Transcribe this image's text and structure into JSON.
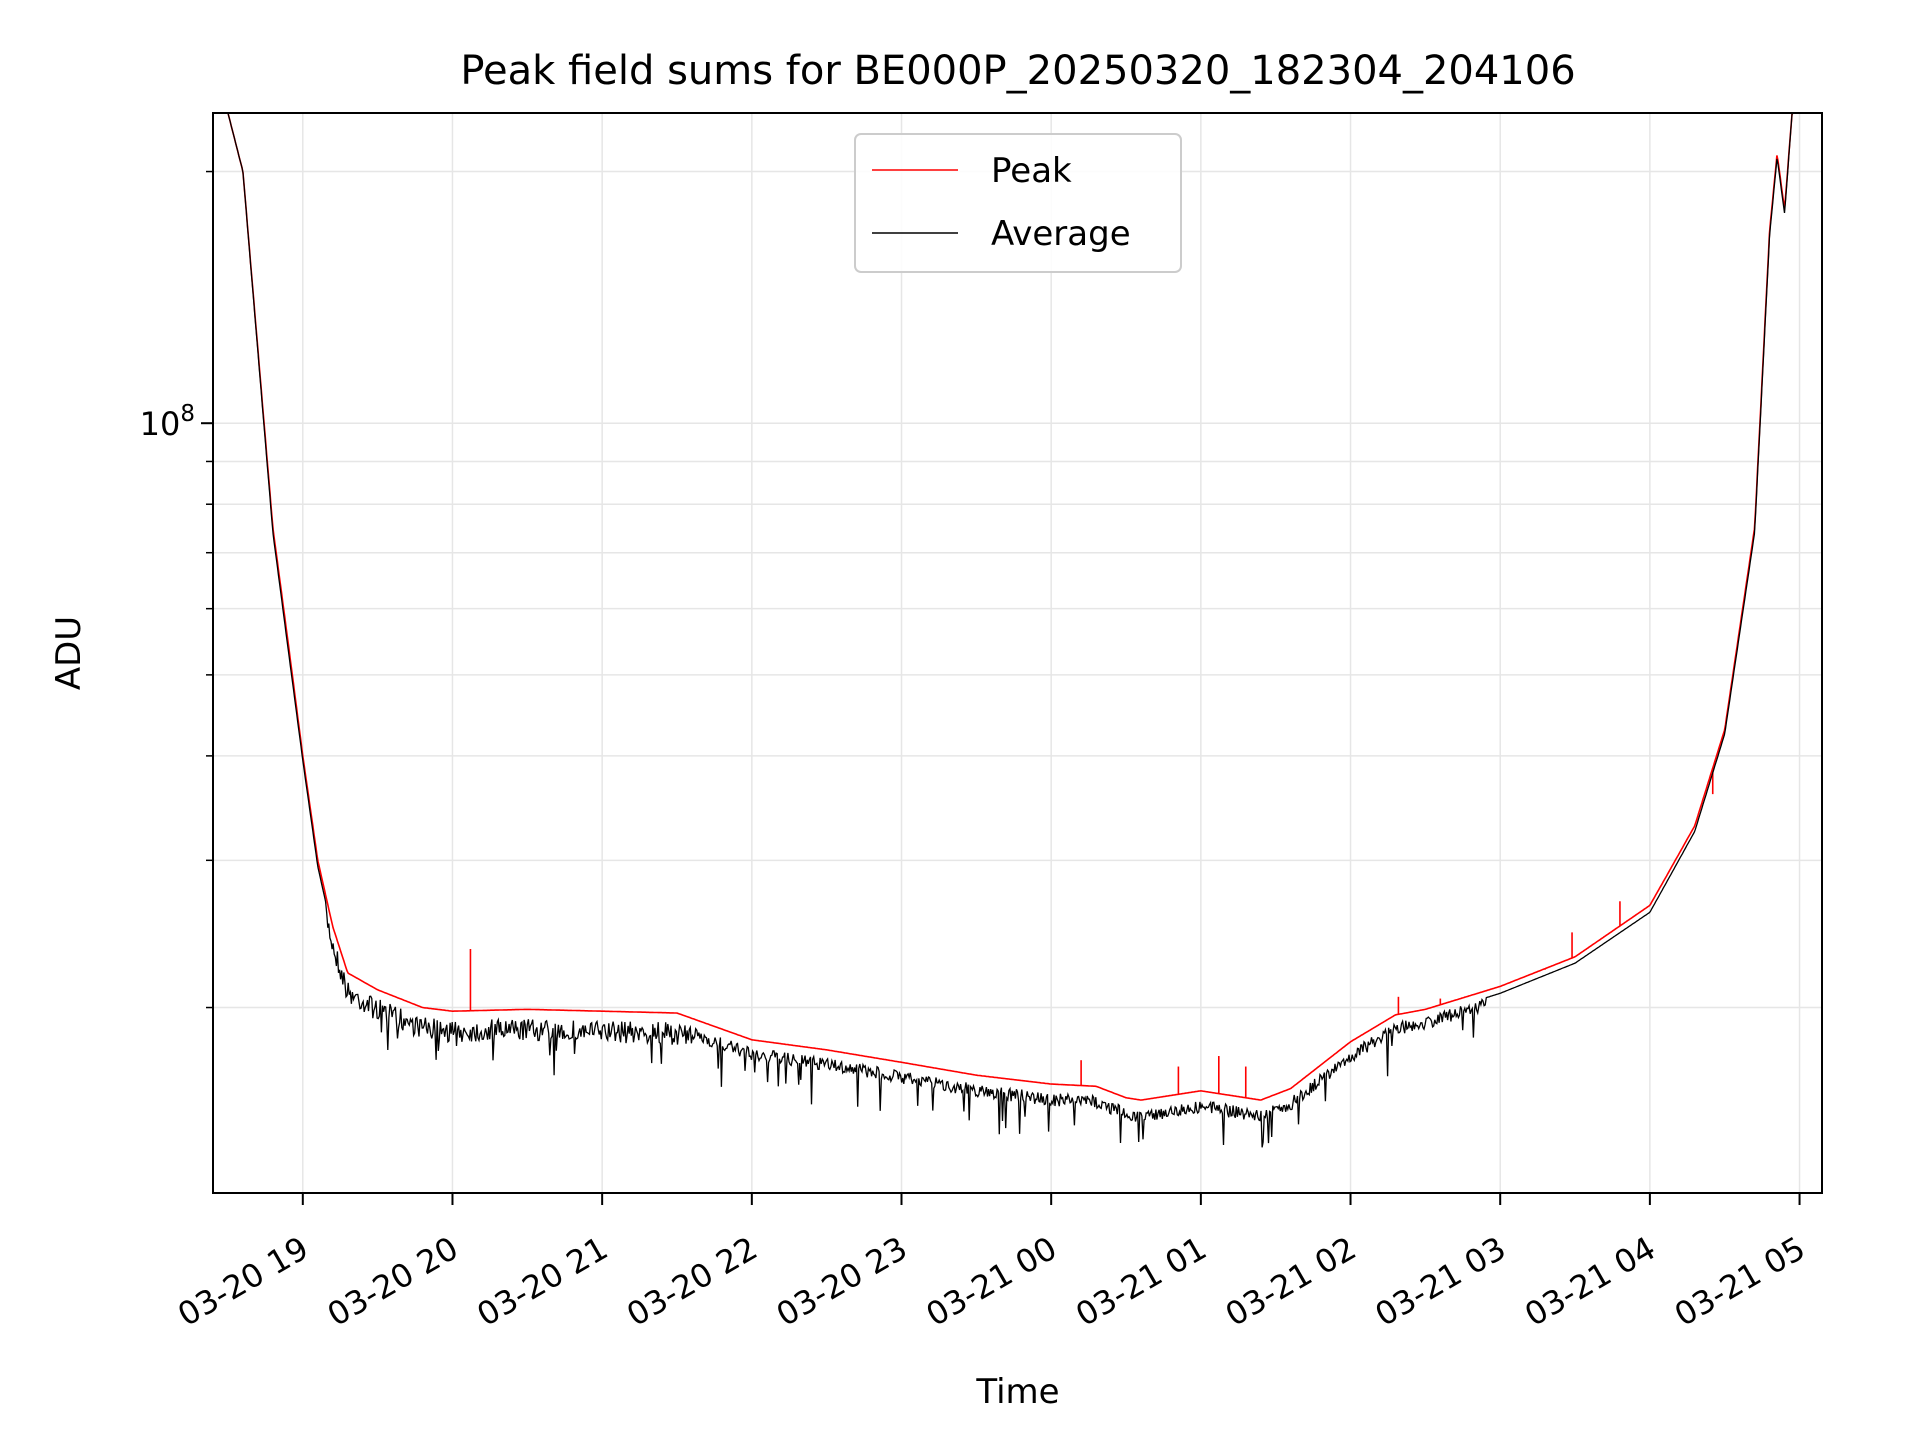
{
  "chart_data": {
    "type": "line",
    "title": "Peak field sums for BE000P_20250320_182304_204106",
    "xlabel": "Time",
    "ylabel": "ADU",
    "yscale": "log",
    "xlim_hours": [
      18.4,
      29.15
    ],
    "ylim": [
      12000000,
      235000000
    ],
    "x_ticks": [
      {
        "hour": 19,
        "label": "03-20 19"
      },
      {
        "hour": 20,
        "label": "03-20 20"
      },
      {
        "hour": 21,
        "label": "03-20 21"
      },
      {
        "hour": 22,
        "label": "03-20 22"
      },
      {
        "hour": 23,
        "label": "03-20 23"
      },
      {
        "hour": 24,
        "label": "03-21 00"
      },
      {
        "hour": 25,
        "label": "03-21 01"
      },
      {
        "hour": 26,
        "label": "03-21 02"
      },
      {
        "hour": 27,
        "label": "03-21 03"
      },
      {
        "hour": 28,
        "label": "03-21 04"
      },
      {
        "hour": 29,
        "label": "03-21 05"
      }
    ],
    "y_major_tick": {
      "value": 100000000,
      "base": "10",
      "exp": "8"
    },
    "y_minor_ticks": [
      20000000,
      30000000,
      40000000,
      50000000,
      60000000,
      70000000,
      80000000,
      90000000,
      200000000
    ],
    "grid": true,
    "legend": {
      "position": "upper-center",
      "entries": [
        "Peak",
        "Average"
      ]
    },
    "series": [
      {
        "name": "Peak",
        "color": "#ff0000",
        "x_hours": [
          18.4,
          18.5,
          18.6,
          18.8,
          18.9,
          19.0,
          19.1,
          19.2,
          19.3,
          19.5,
          19.8,
          20.0,
          20.5,
          21.0,
          21.5,
          22.0,
          22.5,
          23.0,
          23.5,
          24.0,
          24.3,
          24.5,
          24.6,
          25.0,
          25.4,
          25.6,
          26.0,
          26.3,
          26.5,
          27.0,
          27.5,
          28.0,
          28.1,
          28.3,
          28.5,
          28.7,
          28.8,
          28.85,
          28.9,
          28.95,
          29.15
        ],
        "values": [
          235000000,
          235000000,
          200000000,
          75000000,
          55000000,
          40000000,
          30000000,
          25000000,
          22000000,
          21000000,
          20000000,
          19800000,
          19900000,
          19800000,
          19700000,
          18300000,
          17800000,
          17200000,
          16600000,
          16200000,
          16100000,
          15600000,
          15500000,
          15900000,
          15500000,
          16000000,
          18200000,
          19600000,
          19900000,
          21200000,
          23000000,
          26500000,
          28500000,
          33000000,
          43000000,
          75000000,
          170000000,
          210000000,
          180000000,
          235000000,
          235000000
        ]
      },
      {
        "name": "Average",
        "color": "#000000",
        "x_hours": [
          18.4,
          18.5,
          18.6,
          18.8,
          18.9,
          19.0,
          19.1,
          19.2,
          19.3,
          19.5,
          19.8,
          20.0,
          20.5,
          21.0,
          21.5,
          22.0,
          22.5,
          23.0,
          23.5,
          24.0,
          24.3,
          24.5,
          24.6,
          25.0,
          25.4,
          25.6,
          26.0,
          26.3,
          26.5,
          27.0,
          27.5,
          28.0,
          28.1,
          28.3,
          28.5,
          28.7,
          28.8,
          28.85,
          28.9,
          28.95,
          29.15
        ],
        "values": [
          235000000,
          235000000,
          200000000,
          74000000,
          54000000,
          39500000,
          29500000,
          24500000,
          21500000,
          20500000,
          19500000,
          19300000,
          19400000,
          19300000,
          19200000,
          17900000,
          17400000,
          16800000,
          16200000,
          15800000,
          15700000,
          15200000,
          15100000,
          15500000,
          15100000,
          15600000,
          17800000,
          19200000,
          19500000,
          20800000,
          22600000,
          26000000,
          28000000,
          32500000,
          42500000,
          74000000,
          168000000,
          208000000,
          178000000,
          235000000,
          235000000
        ]
      }
    ],
    "peak_spikes": [
      {
        "hour": 20.12,
        "value": 23500000
      },
      {
        "hour": 24.2,
        "value": 17300000
      },
      {
        "hour": 24.85,
        "value": 17000000
      },
      {
        "hour": 25.12,
        "value": 17500000
      },
      {
        "hour": 25.3,
        "value": 17000000
      },
      {
        "hour": 26.32,
        "value": 20600000
      },
      {
        "hour": 26.6,
        "value": 20500000
      },
      {
        "hour": 27.3,
        "value": 22200000
      },
      {
        "hour": 27.48,
        "value": 24600000
      },
      {
        "hour": 27.8,
        "value": 26800000
      },
      {
        "hour": 28.42,
        "value": 36000000
      }
    ]
  }
}
